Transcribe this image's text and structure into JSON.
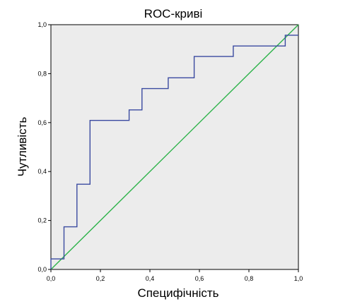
{
  "chart_data": {
    "type": "line",
    "title": "ROC-криві",
    "xlabel": "Специфічність",
    "ylabel": "Чутливість",
    "xlim": [
      0,
      1
    ],
    "ylim": [
      0,
      1
    ],
    "xticks": [
      "0,0",
      "0,2",
      "0,4",
      "0,6",
      "0,8",
      "1,0"
    ],
    "yticks": [
      "0,0",
      "0,2",
      "0,4",
      "0,6",
      "0,8",
      "1,0"
    ],
    "grid": false,
    "plot_background": "#ececec",
    "series": [
      {
        "color": "#3a4aa0",
        "style": "step",
        "x": [
          0.0,
          0.0,
          0.053,
          0.053,
          0.105,
          0.105,
          0.158,
          0.158,
          0.316,
          0.316,
          0.368,
          0.368,
          0.474,
          0.474,
          0.579,
          0.579,
          0.737,
          0.737,
          0.947,
          0.947,
          1.0
        ],
        "y": [
          0.0,
          0.043,
          0.043,
          0.174,
          0.174,
          0.348,
          0.348,
          0.609,
          0.609,
          0.652,
          0.652,
          0.739,
          0.739,
          0.783,
          0.783,
          0.87,
          0.87,
          0.913,
          0.913,
          0.957,
          0.957
        ]
      },
      {
        "color": "#2db34a",
        "style": "line",
        "x": [
          0.0,
          1.0
        ],
        "y": [
          0.0,
          1.0
        ]
      }
    ]
  }
}
